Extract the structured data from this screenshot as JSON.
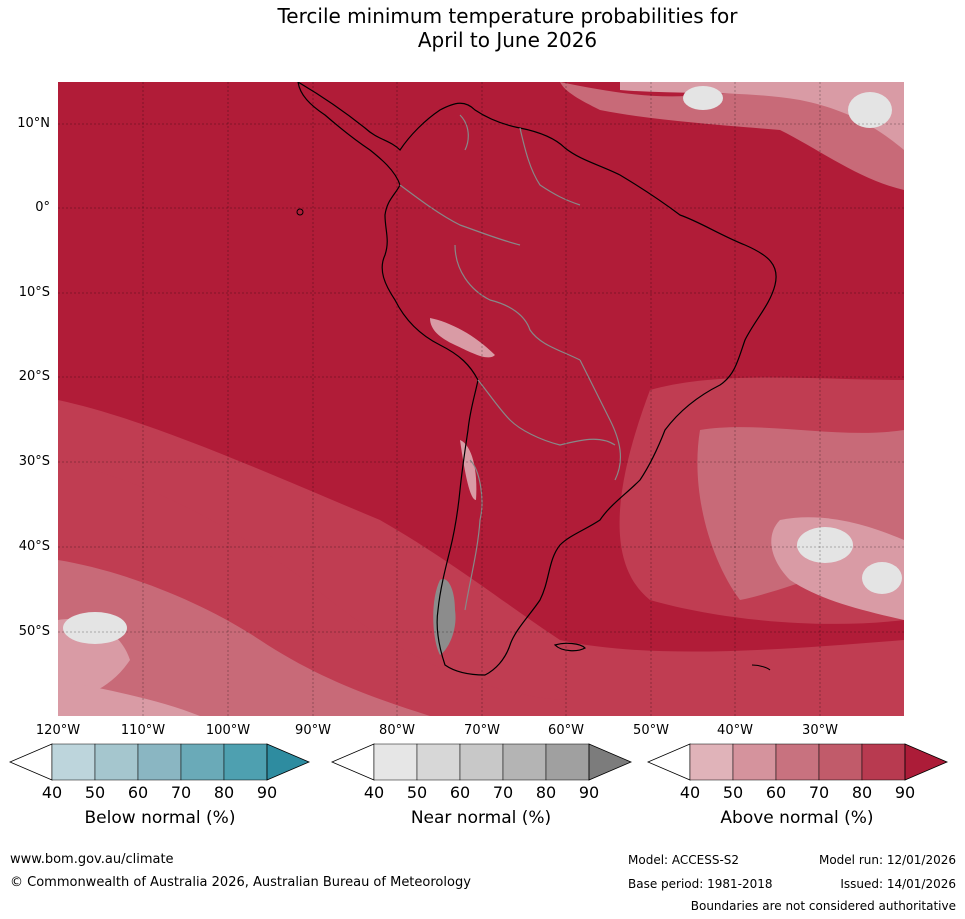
{
  "title": {
    "line1": "Tercile minimum temperature probabilities for",
    "line2": "April to June 2026"
  },
  "map": {
    "region": "South America",
    "lat_labels": [
      "10°N",
      "0°",
      "10°S",
      "20°S",
      "30°S",
      "40°S",
      "50°S"
    ],
    "lon_labels": [
      "120°W",
      "110°W",
      "100°W",
      "90°W",
      "80°W",
      "70°W",
      "60°W",
      "50°W",
      "40°W",
      "30°W"
    ],
    "colors": {
      "above_90": "#b11c38",
      "above_80": "#c03d52",
      "above_70": "#c86a78",
      "above_50": "#d99ba5",
      "neutral": "#e4e4e4",
      "border_national": "#888888",
      "coastline": "#000000"
    }
  },
  "colorbars": [
    {
      "title": "Below normal (%)",
      "ticks": [
        "40",
        "50",
        "60",
        "70",
        "80",
        "90"
      ],
      "colors": [
        "#ffffff",
        "#bdd5dc",
        "#a5c6ce",
        "#8ab6c2",
        "#6aaab8",
        "#4ea0b0",
        "#2e8ca0"
      ]
    },
    {
      "title": "Near normal (%)",
      "ticks": [
        "40",
        "50",
        "60",
        "70",
        "80",
        "90"
      ],
      "colors": [
        "#ffffff",
        "#e6e6e6",
        "#d7d7d7",
        "#c8c8c8",
        "#b4b4b4",
        "#a0a0a0",
        "#7c7c7c"
      ]
    },
    {
      "title": "Above normal (%)",
      "ticks": [
        "40",
        "50",
        "60",
        "70",
        "80",
        "90"
      ],
      "colors": [
        "#ffffff",
        "#e0b3b9",
        "#d5939d",
        "#c8727f",
        "#c15b6a",
        "#b83a50",
        "#ac1c38"
      ]
    }
  ],
  "footer": {
    "website": "www.bom.gov.au/climate",
    "copyright": "© Commonwealth of Australia 2026, Australian Bureau of Meteorology",
    "model": "Model: ACCESS-S2",
    "base_period": "Base period: 1981-2018",
    "model_run": "Model run: 12/01/2026",
    "issued": "Issued: 14/01/2026",
    "disclaimer": "Boundaries are not considered authoritative"
  }
}
